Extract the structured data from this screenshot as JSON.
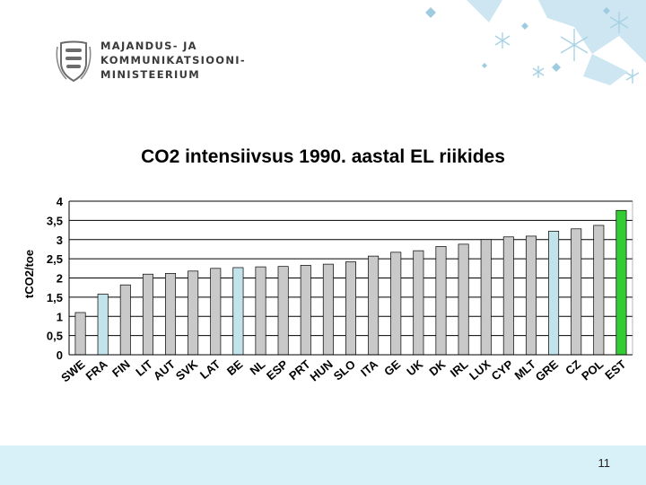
{
  "header": {
    "logo_lines": [
      "MAJANDUS- JA",
      "KOMMUNIKATSIOONI-",
      "MINISTEERIUM"
    ],
    "logo_icon": "estonian-coat-of-arms-icon"
  },
  "colors": {
    "bar_default": "#c9c9c9",
    "bar_highlight_light": "#c3e3eb",
    "bar_est": "#33cc33",
    "footer": "#d8f0f8",
    "decor": "#b9dcea"
  },
  "chart_data": {
    "type": "bar",
    "title": "CO2 intensiivsus 1990. aastal EL riikides",
    "xlabel": "",
    "ylabel": "tCO2/toe",
    "ylim": [
      0,
      4
    ],
    "yticks": [
      "0",
      "0,5",
      "1",
      "1,5",
      "2",
      "2,5",
      "3",
      "3,5",
      "4"
    ],
    "grid": "horizontal",
    "categories": [
      "SWE",
      "FRA",
      "FIN",
      "LIT",
      "AUT",
      "SVK",
      "LAT",
      "BE",
      "NL",
      "ESP",
      "PRT",
      "HUN",
      "SLO",
      "ITA",
      "GE",
      "UK",
      "DK",
      "IRL",
      "LUX",
      "CYP",
      "MLT",
      "GRE",
      "CZ",
      "POL",
      "EST"
    ],
    "values": [
      1.1,
      1.58,
      1.82,
      2.1,
      2.12,
      2.18,
      2.25,
      2.27,
      2.29,
      2.3,
      2.33,
      2.36,
      2.42,
      2.57,
      2.67,
      2.71,
      2.82,
      2.88,
      3.0,
      3.07,
      3.09,
      3.22,
      3.28,
      3.37,
      3.76
    ],
    "bar_colors": [
      "#c9c9c9",
      "#c3e3eb",
      "#c9c9c9",
      "#c9c9c9",
      "#c9c9c9",
      "#c9c9c9",
      "#c9c9c9",
      "#c3e3eb",
      "#c9c9c9",
      "#c9c9c9",
      "#c9c9c9",
      "#c9c9c9",
      "#c9c9c9",
      "#c9c9c9",
      "#c9c9c9",
      "#c9c9c9",
      "#c9c9c9",
      "#c9c9c9",
      "#c9c9c9",
      "#c9c9c9",
      "#c9c9c9",
      "#c3e3eb",
      "#c9c9c9",
      "#c9c9c9",
      "#33cc33"
    ]
  },
  "footer": {
    "page_number": "11"
  }
}
